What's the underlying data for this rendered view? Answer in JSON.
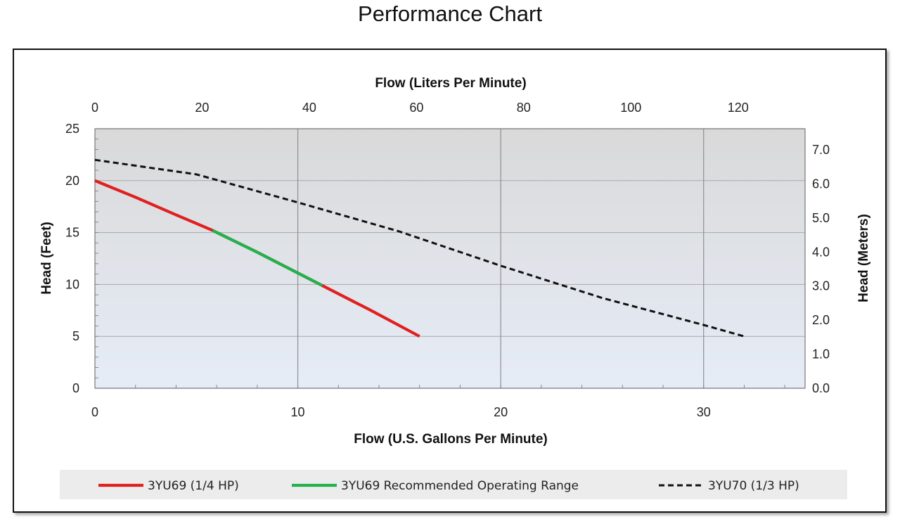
{
  "title": "Performance Chart",
  "chart_data": {
    "type": "line",
    "xlabel": "Flow (U.S. Gallons Per Minute)",
    "xlabel_top": "Flow (Liters Per Minute)",
    "ylabel": "Head (Feet)",
    "ylabel_right": "Head (Meters)",
    "xlim": [
      0,
      35
    ],
    "ylim": [
      0,
      25
    ],
    "xlim_top": [
      0,
      132.5
    ],
    "ylim_right": [
      0,
      7.62
    ],
    "x_ticks": [
      "0",
      "10",
      "20",
      "30"
    ],
    "x_tick_values": [
      0,
      10,
      20,
      30
    ],
    "x_top_ticks": [
      "0",
      "20",
      "40",
      "60",
      "80",
      "100",
      "120"
    ],
    "x_top_tick_values": [
      0,
      20,
      40,
      60,
      80,
      100,
      120
    ],
    "y_ticks": [
      "0",
      "5",
      "10",
      "15",
      "20",
      "25"
    ],
    "y_tick_values": [
      0,
      5,
      10,
      15,
      20,
      25
    ],
    "y_right_ticks": [
      "0.0",
      "1.0",
      "2.0",
      "3.0",
      "4.0",
      "5.0",
      "6.0",
      "7.0"
    ],
    "y_right_tick_values": [
      0,
      1,
      2,
      3,
      4,
      5,
      6,
      7
    ],
    "grid": true,
    "legend_position": "bottom",
    "series": [
      {
        "name": "3YU69 (1/4 HP)",
        "color": "#e02020",
        "style": "solid",
        "x": [
          0,
          2,
          4,
          5.8,
          8,
          11.2,
          13.5,
          16
        ],
        "y": [
          20,
          18.4,
          16.7,
          15.2,
          13.1,
          9.9,
          7.6,
          5
        ]
      },
      {
        "name": "3YU69 Recommended Operating Range",
        "color": "#22b14c",
        "style": "solid",
        "x": [
          5.8,
          8,
          11.2
        ],
        "y": [
          15.2,
          13.1,
          9.9
        ]
      },
      {
        "name": "3YU70 (1/3 HP)",
        "color": "#111111",
        "style": "dashed",
        "x": [
          0,
          5,
          10,
          15,
          20,
          25,
          30,
          32
        ],
        "y": [
          22,
          20.6,
          17.9,
          15.1,
          11.8,
          8.7,
          6.1,
          5
        ]
      }
    ]
  }
}
